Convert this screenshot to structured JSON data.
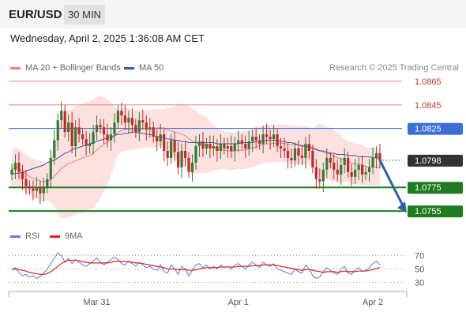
{
  "header": {
    "symbol": "EUR/USD",
    "timeframe": "30 MIN",
    "datetime": "Wednesday, April 2, 2025 1:36:08 AM CET"
  },
  "legend": {
    "ma20_label": "MA 20 + Bollinger Bands",
    "ma50_label": "MA 50",
    "credit": "Research © 2025 Trading Central"
  },
  "rsi_legend": {
    "rsi_label": "RSI",
    "ma_label": "9MA"
  },
  "colors": {
    "ma20": "#f08080",
    "ma50": "#2f5ba8",
    "bollinger_fill": "#fde0e0",
    "candle_up": "#2e7d32",
    "candle_down": "#c62828",
    "support": "#1e7b1e",
    "resistance_red": "#f08080",
    "resistance_blue": "#3a6fd8",
    "current": "#333333",
    "forecast_arrow": "#2c5fa8",
    "rsi_line": "#5b7ee0",
    "rsi_ma": "#e02020"
  },
  "chart_data": [
    {
      "type": "candlestick",
      "symbol": "EUR/USD",
      "interval": "30 MIN",
      "ylim": [
        1.0745,
        1.0875
      ],
      "x_tick_labels": [
        "Mar 31",
        "Apr 1",
        "Apr 2"
      ],
      "price_levels": [
        {
          "label": "1.0865",
          "value": 1.0865,
          "kind": "resistance",
          "color": "#f08080"
        },
        {
          "label": "1.0845",
          "value": 1.0845,
          "kind": "resistance",
          "color": "#f08080"
        },
        {
          "label": "1.0825",
          "value": 1.0825,
          "kind": "pivot",
          "color": "#3a6fd8"
        },
        {
          "label": "1.0798",
          "value": 1.0798,
          "kind": "current",
          "color": "#333333"
        },
        {
          "label": "1.0775",
          "value": 1.0775,
          "kind": "support",
          "color": "#1e7b1e"
        },
        {
          "label": "1.0755",
          "value": 1.0755,
          "kind": "support",
          "color": "#1e7b1e"
        }
      ],
      "forecast": {
        "from": 1.0798,
        "to": 1.0755,
        "direction": "down"
      },
      "close_series": [
        1.079,
        1.0796,
        1.0788,
        1.0782,
        1.0776,
        1.0774,
        1.0772,
        1.0775,
        1.077,
        1.0775,
        1.0782,
        1.08,
        1.0815,
        1.0832,
        1.084,
        1.0822,
        1.083,
        1.081,
        1.0826,
        1.082,
        1.0816,
        1.081,
        1.0812,
        1.0822,
        1.0828,
        1.0826,
        1.082,
        1.0815,
        1.082,
        1.083,
        1.084,
        1.0836,
        1.083,
        1.0834,
        1.0828,
        1.0822,
        1.0832,
        1.083,
        1.0824,
        1.0826,
        1.0818,
        1.0814,
        1.082,
        1.0806,
        1.08,
        1.0815,
        1.0805,
        1.0792,
        1.0806,
        1.08,
        1.0788,
        1.0796,
        1.081,
        1.0814,
        1.0808,
        1.0812,
        1.0808,
        1.081,
        1.0806,
        1.0812,
        1.0808,
        1.081,
        1.0806,
        1.0812,
        1.0815,
        1.0812,
        1.0808,
        1.0814,
        1.0818,
        1.0815,
        1.0812,
        1.082,
        1.0818,
        1.0816,
        1.082,
        1.081,
        1.0808,
        1.0806,
        1.08,
        1.0798,
        1.0808,
        1.0802,
        1.08,
        1.0812,
        1.0806,
        1.0792,
        1.0782,
        1.078,
        1.079,
        1.08,
        1.0796,
        1.079,
        1.0786,
        1.0794,
        1.08,
        1.0788,
        1.0784,
        1.079,
        1.0794,
        1.0786,
        1.0788,
        1.0792,
        1.08,
        1.0804,
        1.0798
      ],
      "ma50_series": [
        1.0786,
        1.0787,
        1.0787,
        1.0788,
        1.0789,
        1.079,
        1.0791,
        1.0792,
        1.0793,
        1.0794,
        1.0796,
        1.0797,
        1.0798,
        1.08,
        1.0802,
        1.0804,
        1.0805,
        1.0807,
        1.0808,
        1.0809,
        1.081,
        1.0811,
        1.0812,
        1.0813,
        1.0814,
        1.0815,
        1.0816,
        1.0817,
        1.0818,
        1.0819,
        1.082,
        1.082,
        1.0821,
        1.0821,
        1.0822,
        1.0822,
        1.0821,
        1.0821,
        1.082,
        1.082,
        1.0819,
        1.0818,
        1.0818,
        1.0817,
        1.0816,
        1.0816,
        1.0815,
        1.0815,
        1.0814,
        1.0814,
        1.0813,
        1.0813,
        1.0813,
        1.0813,
        1.0813,
        1.0813,
        1.0813,
        1.0813,
        1.0812,
        1.0812,
        1.0812,
        1.0812,
        1.0812,
        1.0812,
        1.0812,
        1.0813,
        1.0813,
        1.0813,
        1.0813,
        1.0814,
        1.0814,
        1.0814,
        1.0815,
        1.0815,
        1.0815,
        1.0815,
        1.0814,
        1.0814,
        1.0813,
        1.0813,
        1.0812,
        1.0811,
        1.081,
        1.081,
        1.0809,
        1.0808,
        1.0807,
        1.0806,
        1.0806,
        1.0805,
        1.0804,
        1.0804,
        1.0803,
        1.0803,
        1.0803,
        1.0802,
        1.0802,
        1.0802,
        1.0801,
        1.0801,
        1.0801,
        1.0801,
        1.08,
        1.08,
        1.08
      ],
      "rsi": {
        "levels": [
          70,
          50,
          30
        ],
        "ylim": [
          20,
          80
        ],
        "rsi_series": [
          48,
          52,
          45,
          40,
          42,
          38,
          40,
          36,
          39,
          44,
          50,
          58,
          66,
          74,
          70,
          60,
          66,
          58,
          64,
          60,
          56,
          54,
          58,
          62,
          66,
          60,
          56,
          60,
          64,
          68,
          64,
          58,
          56,
          62,
          58,
          54,
          60,
          56,
          52,
          54,
          50,
          48,
          56,
          46,
          44,
          56,
          50,
          42,
          54,
          50,
          40,
          48,
          56,
          58,
          52,
          56,
          50,
          54,
          50,
          56,
          52,
          54,
          50,
          56,
          58,
          54,
          50,
          56,
          60,
          56,
          52,
          60,
          56,
          54,
          58,
          50,
          48,
          46,
          44,
          42,
          50,
          46,
          44,
          56,
          50,
          40,
          36,
          38,
          46,
          52,
          48,
          44,
          42,
          50,
          54,
          44,
          42,
          48,
          52,
          46,
          48,
          52,
          58,
          62,
          56
        ],
        "ma_series": [
          50,
          50,
          49,
          48,
          47,
          45,
          44,
          43,
          42,
          42,
          43,
          46,
          50,
          54,
          58,
          61,
          63,
          63,
          63,
          62,
          61,
          60,
          59,
          59,
          59,
          59,
          59,
          59,
          60,
          61,
          62,
          61,
          61,
          61,
          60,
          59,
          59,
          58,
          57,
          56,
          55,
          54,
          53,
          52,
          50,
          50,
          50,
          49,
          49,
          49,
          48,
          48,
          49,
          50,
          51,
          52,
          52,
          52,
          52,
          53,
          53,
          53,
          53,
          53,
          54,
          54,
          54,
          54,
          55,
          55,
          55,
          56,
          56,
          56,
          56,
          55,
          54,
          53,
          52,
          51,
          50,
          49,
          48,
          49,
          49,
          48,
          47,
          46,
          45,
          46,
          46,
          46,
          45,
          46,
          47,
          46,
          46,
          46,
          47,
          47,
          47,
          48,
          49,
          51,
          52
        ]
      }
    }
  ]
}
